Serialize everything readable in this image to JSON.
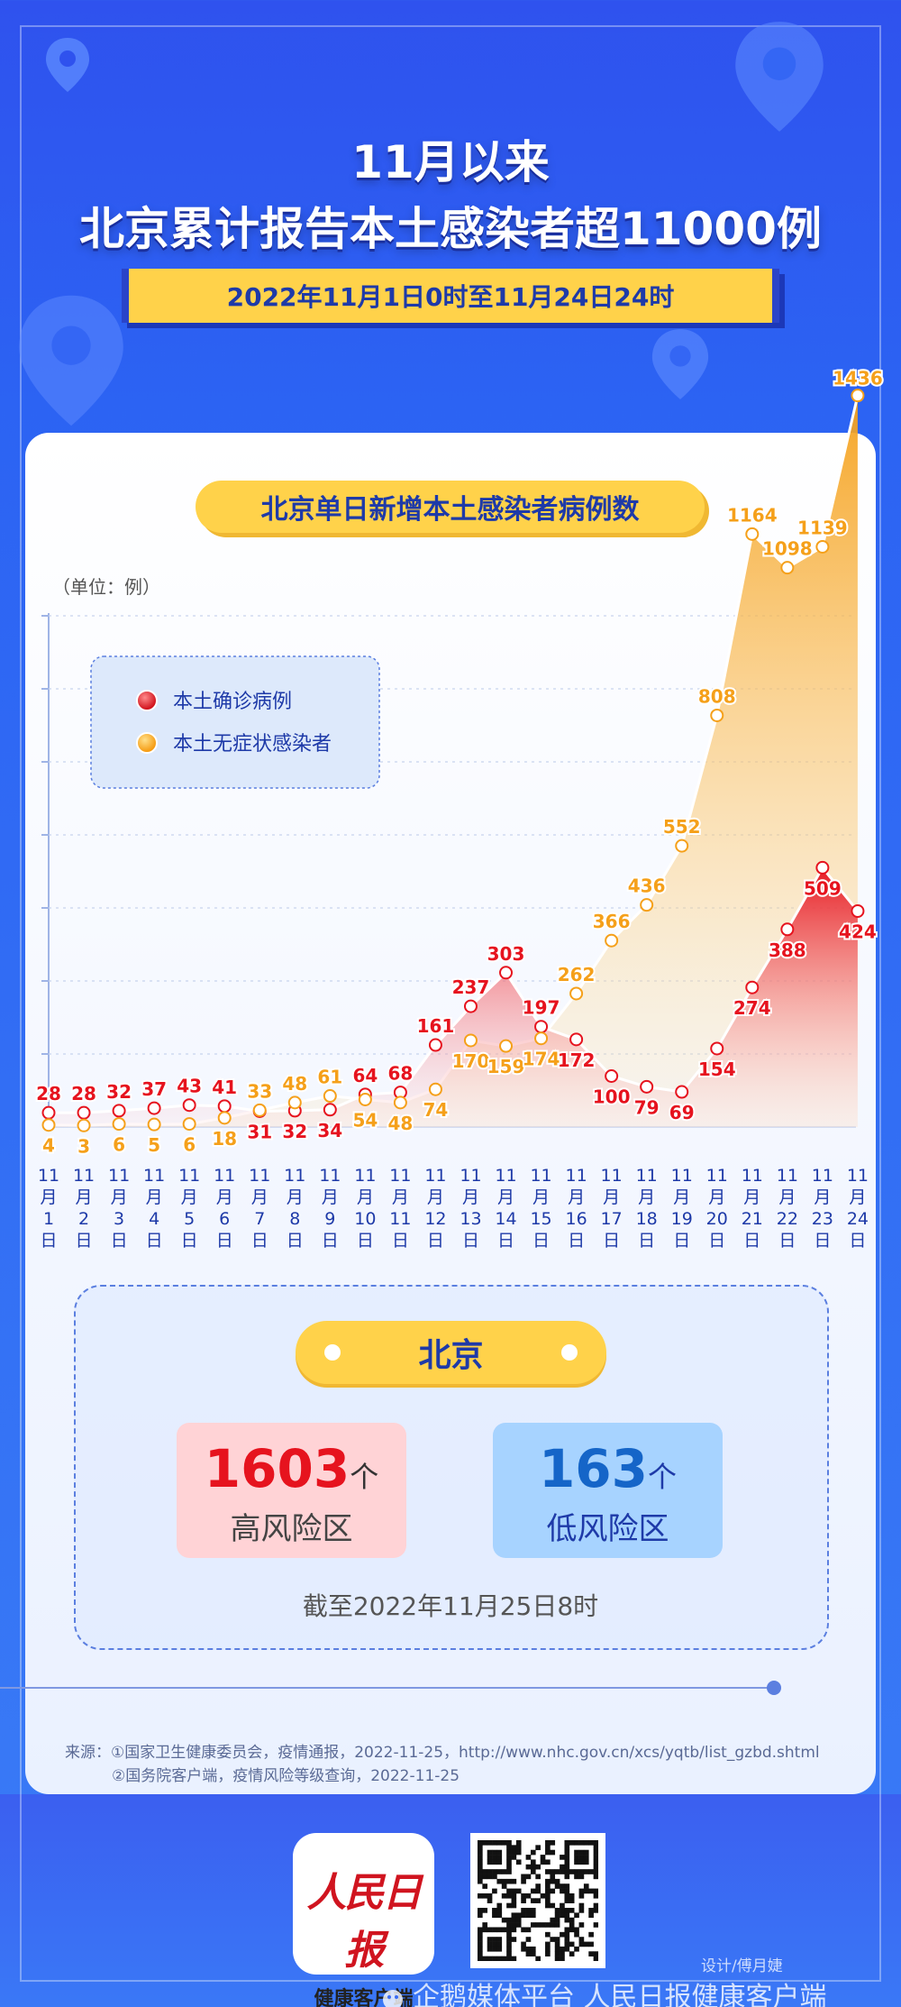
{
  "header": {
    "title_line1": "11月以来",
    "title_line2": "北京累计报告本土感染者超11000例",
    "date_range": "2022年11月1日0时至11月24日24时"
  },
  "chart_title": "北京单日新增本土感染者病例数",
  "chart_data": {
    "type": "area",
    "unit_label": "（单位：例）",
    "x": [
      "11月1日",
      "11月2日",
      "11月3日",
      "11月4日",
      "11月5日",
      "11月6日",
      "11月7日",
      "11月8日",
      "11月9日",
      "11月10日",
      "11月11日",
      "11月12日",
      "11月13日",
      "11月14日",
      "11月15日",
      "11月16日",
      "11月17日",
      "11月18日",
      "11月19日",
      "11月20日",
      "11月21日",
      "11月22日",
      "11月23日",
      "11月24日"
    ],
    "x_tick_lines": [
      [
        "11",
        "月",
        "1",
        "日"
      ],
      [
        "11",
        "月",
        "2",
        "日"
      ],
      [
        "11",
        "月",
        "3",
        "日"
      ],
      [
        "11",
        "月",
        "4",
        "日"
      ],
      [
        "11",
        "月",
        "5",
        "日"
      ],
      [
        "11",
        "月",
        "6",
        "日"
      ],
      [
        "11",
        "月",
        "7",
        "日"
      ],
      [
        "11",
        "月",
        "8",
        "日"
      ],
      [
        "11",
        "月",
        "9",
        "日"
      ],
      [
        "11",
        "月",
        "10",
        "日"
      ],
      [
        "11",
        "月",
        "11",
        "日"
      ],
      [
        "11",
        "月",
        "12",
        "日"
      ],
      [
        "11",
        "月",
        "13",
        "日"
      ],
      [
        "11",
        "月",
        "14",
        "日"
      ],
      [
        "11",
        "月",
        "15",
        "日"
      ],
      [
        "11",
        "月",
        "16",
        "日"
      ],
      [
        "11",
        "月",
        "17",
        "日"
      ],
      [
        "11",
        "月",
        "18",
        "日"
      ],
      [
        "11",
        "月",
        "19",
        "日"
      ],
      [
        "11",
        "月",
        "20",
        "日"
      ],
      [
        "11",
        "月",
        "21",
        "日"
      ],
      [
        "11",
        "月",
        "22",
        "日"
      ],
      [
        "11",
        "月",
        "23",
        "日"
      ],
      [
        "11",
        "月",
        "24",
        "日"
      ]
    ],
    "series": [
      {
        "name": "本土确诊病例",
        "color": "#e6131e",
        "values": [
          28,
          28,
          32,
          37,
          43,
          41,
          31,
          32,
          34,
          64,
          68,
          161,
          237,
          303,
          197,
          172,
          100,
          79,
          69,
          154,
          274,
          388,
          509,
          424
        ]
      },
      {
        "name": "本土无症状感染者",
        "color": "#f5a01a",
        "values": [
          4,
          3,
          6,
          5,
          6,
          18,
          33,
          48,
          61,
          54,
          48,
          74,
          170,
          159,
          174,
          262,
          366,
          436,
          552,
          808,
          1164,
          1098,
          1139,
          1436
        ]
      }
    ],
    "ylim": [
      0,
      1400
    ],
    "legend_position": "top-left",
    "grid": true
  },
  "region": {
    "name": "北京",
    "high": {
      "number": "1603",
      "unit": "个",
      "label": "高风险区"
    },
    "low": {
      "number": "163",
      "unit": "个",
      "label": "低风险区"
    },
    "as_of": "截至2022年11月25日8时"
  },
  "sources": {
    "line1": "来源：①国家卫生健康委员会，疫情通报，2022-11-25，http://www.nhc.gov.cn/xcs/yqtb/list_gzbd.shtml",
    "line2": "②国务院客户端，疫情风险等级查询，2022-11-25"
  },
  "footer": {
    "logo_text": "人民日报",
    "logo_sub": "健康客户端",
    "designer": "设计/傅月婕",
    "watermark": "企鹅媒体平台 人民日报健康客户端"
  }
}
